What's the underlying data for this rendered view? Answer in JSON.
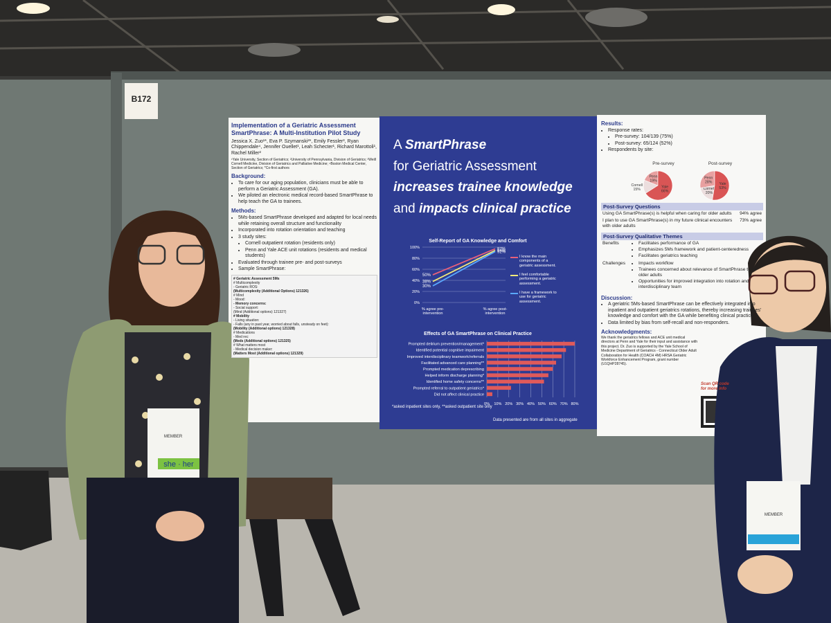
{
  "booth_sign": "B172",
  "poster": {
    "left": {
      "title": "Implementation of a Geriatric Assessment SmartPhrase: A Multi-Institution Pilot Study",
      "authors": "Jessica X. Zuo¹*, Eva P. Szymanski²*, Emily Fessler³, Ryan Chippendale⁴, Jennifer Ouellet¹, Leah Schecter¹, Richard Marottoli¹, Rachel Miller²",
      "affiliations": "¹Yale University, Section of Geriatrics; ²University of Pennsylvania, Division of Geriatrics; ³Weill Cornell Medicine, Division of Geriatrics and Palliative Medicine; ⁴Boston Medical Center, Section of Geriatrics; *Co-first authors",
      "background_heading": "Background:",
      "background": [
        "To care for our aging population, clinicians must be able to perform a Geriatric Assessment (GA).",
        "We piloted an electronic medical record-based SmartPhrase to help teach the GA to trainees."
      ],
      "methods_heading": "Methods:",
      "methods": [
        "5Ms-based SmartPhrase developed and adapted for local needs while retaining overall structure and functionality",
        "Incorporated into rotation orientation and teaching",
        "3 study sites:"
      ],
      "sites": [
        "Cornell outpatient rotation (residents only)",
        "Penn and Yale ACE unit rotations (residents and medical students)"
      ],
      "methods_more": [
        "Evaluated through trainee pre- and post-surveys",
        "Sample SmartPhrase:"
      ],
      "sample": [
        "# Geriatric Assessment 5Ms",
        "# Multicomplexity",
        "- Geriatric ROS:",
        "(Multicomplexity (Additional Options) 121326)",
        "# Mind",
        "- Mood:",
        "- Memory concerns:",
        "- Social support:",
        "(Mind (Additional options) 121327)",
        "# Mobility",
        "- Living situation:",
        "- Falls (any in past year, worried about falls, unsteady on feet):",
        "(Mobility (Additional options) 121328)",
        "# Medications",
        "- Med rec:",
        "(Meds (Additional options) 121325)",
        "# What matters most",
        "- Medical decision maker:",
        "(Matters Most (Additional options) 121329)"
      ]
    },
    "center": {
      "headline": [
        [
          "A ",
          "SmartPhrase"
        ],
        [
          "for Geriatric Assessment"
        ],
        [
          "increases trainee knowledge"
        ],
        [
          "and ",
          "impacts",
          " clinical practice"
        ]
      ],
      "footnote": "*asked inpatient sites only, **asked outpatient site only",
      "source": "Data presented are from all sites in aggregate"
    },
    "right": {
      "results_heading": "Results:",
      "results": [
        "Response rates:"
      ],
      "response_rates": [
        "Pre-survey: 104/139 (75%)",
        "Post-survey: 65/124 (52%)"
      ],
      "respondents": "Respondents by site:",
      "questions_heading": "Post-Survey Questions",
      "questions": [
        [
          "Using GA SmartPhrase(s) is helpful when caring for older adults",
          "94% agree"
        ],
        [
          "I plan to use GA SmartPhrase(s) in my future clinical encounters with older adults",
          "73% agree"
        ]
      ],
      "themes_heading": "Post-Survey Qualitative Themes",
      "benefits_label": "Benefits",
      "benefits": [
        "Facilitates performance of GA",
        "Emphasizes 5Ms framework and patient-centeredness",
        "Facilitates geriatrics teaching"
      ],
      "challenges_label": "Challenges",
      "challenges": [
        "Impacts workflow",
        "Trainees concerned about relevance of SmartPhrase to all older adults",
        "Opportunities for improved integration into rotation and interdisciplinary team"
      ],
      "discussion_heading": "Discussion:",
      "discussion": [
        "A geriatric 5Ms-based SmartPhrase can be effectively integrated into inpatient and outpatient geriatrics rotations, thereby increasing trainees' knowledge and comfort with the GA while benefiting clinical practice",
        "Data limited by bias from self-recall and non-responders."
      ],
      "ack_heading": "Acknowledgments:",
      "ack": "We thank the geriatrics fellows and ACE unit medical directors at Penn and Yale for their input and assistance with this project. Dr. Zuo is supported by the Yale School of Medicine Department of Geriatrics - Connecticut Older Adult Collaboration for Health (COACH 4M) HRSA Geriatric Workforce Enhancement Program, grant number (U1QHP28745).",
      "qr_note": "Scan QR code for more info"
    }
  },
  "badges": {
    "pronouns": "she · her",
    "member": "MEMBER"
  },
  "chart_data": [
    {
      "type": "line",
      "title": "Self-Report of GA Knowledge and Comfort",
      "categories": [
        "% agree pre-intervention",
        "% agree post-intervention"
      ],
      "series": [
        {
          "name": "I know the main components of a geriatric assessment.",
          "color": "#e8607a",
          "values": [
            50,
            97
          ],
          "value_labels": [
            "50%",
            "97%"
          ]
        },
        {
          "name": "I feel comfortable performing a geriatric assessment.",
          "color": "#f3ea7a",
          "values": [
            38,
            94
          ],
          "value_labels": [
            "38%",
            "94%"
          ]
        },
        {
          "name": "I have a framework to use for geriatric assessment.",
          "color": "#5aa8ff",
          "values": [
            30,
            92
          ],
          "value_labels": [
            "30%",
            "92%"
          ]
        }
      ],
      "ylim": [
        0,
        100
      ],
      "yticks": [
        {
          "value": 0,
          "label": "0%"
        },
        {
          "value": 20,
          "label": "20%"
        },
        {
          "value": 40,
          "label": "40%"
        },
        {
          "value": 60,
          "label": "60%"
        },
        {
          "value": 80,
          "label": "80%"
        },
        {
          "value": 100,
          "label": "100%"
        }
      ],
      "grid": true
    },
    {
      "type": "bar",
      "orientation": "horizontal",
      "title": "Effects of GA SmartPhrase on Clinical Practice",
      "categories": [
        "Prompted delirium prevention/management*",
        "Identified potential cognitive impairment",
        "Improved interdisciplinary teamwork/referrals",
        "Facilitated advanced care planning**",
        "Prompted medication deprescribing",
        "Helped inform discharge planning*",
        "Identified home safety concerns**",
        "Prompted referral to outpatient geriatrics*",
        "Did not affect clinical practice"
      ],
      "values": [
        80,
        72,
        68,
        63,
        60,
        56,
        52,
        22,
        5
      ],
      "color": "#e05a5a",
      "xlim": [
        0,
        80
      ],
      "xticks": [
        {
          "value": 0,
          "label": "0%"
        },
        {
          "value": 10,
          "label": "10%"
        },
        {
          "value": 20,
          "label": "20%"
        },
        {
          "value": 30,
          "label": "30%"
        },
        {
          "value": 40,
          "label": "40%"
        },
        {
          "value": 50,
          "label": "50%"
        },
        {
          "value": 60,
          "label": "60%"
        },
        {
          "value": 70,
          "label": "70%"
        },
        {
          "value": 80,
          "label": "80%"
        }
      ],
      "grid": true
    },
    {
      "type": "pie",
      "title": "Pre-survey",
      "categories": [
        "Cornell",
        "Penn",
        "Yale"
      ],
      "values": [
        15,
        19,
        66
      ],
      "value_labels": [
        "15%",
        "19%",
        "66%"
      ],
      "colors": [
        "#ecdede",
        "#e8a0a0",
        "#d95555"
      ]
    },
    {
      "type": "pie",
      "title": "Post-survey",
      "categories": [
        "Cornell",
        "Penn",
        "Yale"
      ],
      "values": [
        20,
        28,
        53
      ],
      "value_labels": [
        "20%",
        "28%",
        "53%"
      ],
      "colors": [
        "#ecdede",
        "#e8a0a0",
        "#d95555"
      ]
    }
  ]
}
